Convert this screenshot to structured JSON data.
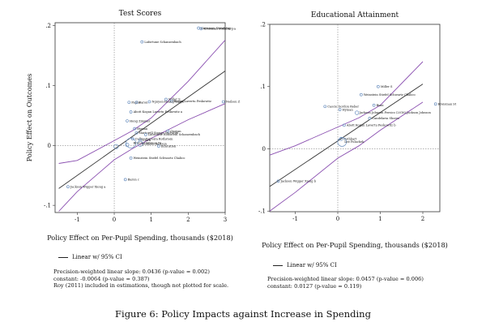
{
  "caption": "Figure 6: Policy Impacts against Increase in Spending",
  "panels": [
    {
      "legend_label": "Linear w/ 95% CI",
      "notes": [
        "Precision-weighted linear slope: 0.0436 (p-value = 0.002)",
        " constant: -0.0064 (p-value = 0.387)",
        "Roy (2011) included in estimations, though not plotted for scale."
      ]
    },
    {
      "legend_label": "Linear w/ 95% CI",
      "notes": [
        "Precision-weighted linear slope: 0.0457 (p-value = 0.006)",
        " constant: 0.0127 (p-value = 0.119)"
      ]
    }
  ],
  "chart_data": [
    {
      "type": "scatter",
      "title": "Test Scores",
      "xlabel": "Policy Effect on Per-Pupil Spending, thousands ($2018)",
      "ylabel": "Policy Effect on Outcomes",
      "xlim": [
        -1.6,
        3.0
      ],
      "ylim": [
        -0.112,
        0.205
      ],
      "xticks": [
        "-1",
        "0",
        "1",
        "2",
        "3"
      ],
      "xtick_values": [
        -1,
        0,
        1,
        2,
        3
      ],
      "yticks": [
        "-.1",
        "0",
        ".1",
        ".2"
      ],
      "ytick_values": [
        -0.1,
        0,
        0.1,
        0.2
      ],
      "fit": {
        "slope": 0.0436,
        "intercept": -0.0064,
        "x": [
          -1.5,
          3.0
        ]
      },
      "ci_upper": {
        "x": [
          -1.5,
          -1.0,
          0.0,
          0.5,
          1.0,
          2.0,
          3.0
        ],
        "y": [
          -0.03,
          -0.025,
          0.008,
          0.025,
          0.046,
          0.107,
          0.176
        ]
      },
      "ci_lower": {
        "x": [
          -1.5,
          -1.0,
          0.0,
          0.5,
          1.0,
          2.0,
          3.0
        ],
        "y": [
          -0.11,
          -0.077,
          -0.024,
          -0.005,
          0.012,
          0.043,
          0.07
        ]
      },
      "colors": {
        "points": "#6a8fbf",
        "fit": "#333333",
        "ci": "#8a4fb0",
        "frame": "#333333"
      },
      "points": [
        {
          "x": 2.28,
          "y": 0.196,
          "w": 1,
          "label": "Kreisman Steinberg ..."
        },
        {
          "x": 2.35,
          "y": 0.195,
          "w": 1,
          "label": "Kreisman Steinberg a"
        },
        {
          "x": 0.75,
          "y": 0.173,
          "w": 1,
          "label": "Lafortune Schanzenbach"
        },
        {
          "x": 2.95,
          "y": 0.073,
          "w": 1,
          "label": "Neilson Z"
        },
        {
          "x": 1.4,
          "y": 0.077,
          "w": 1,
          "label": "Miller S"
        },
        {
          "x": 1.55,
          "y": 0.074,
          "w": 1,
          "label": "Kogan Lavertu Peskowitz"
        },
        {
          "x": 0.95,
          "y": 0.073,
          "w": 1,
          "label": "Nguyen-Hoang Yinger"
        },
        {
          "x": 0.4,
          "y": 0.072,
          "w": 1,
          "label": "Papke"
        },
        {
          "x": 0.6,
          "y": 0.072,
          "w": 1,
          "label": "Baron"
        },
        {
          "x": 0.45,
          "y": 0.056,
          "w": 1,
          "label": "Abott Kogan Lavertu Peskowitz a"
        },
        {
          "x": 0.35,
          "y": 0.041,
          "w": 1,
          "label": "Hong Zimmer"
        },
        {
          "x": 0.55,
          "y": 0.028,
          "w": 1,
          "label": "Hyman"
        },
        {
          "x": 1.45,
          "y": 0.024,
          "w": 1,
          "label": "Guryan"
        },
        {
          "x": 0.6,
          "y": 0.021,
          "w": 1,
          "label": "Martorell Stange McFarlin"
        },
        {
          "x": 0.85,
          "y": 0.018,
          "w": 1,
          "label": "Lafortune Rothstein Schanzenbach"
        },
        {
          "x": 0.5,
          "y": 0.011,
          "w": 1,
          "label": "Cellini Ferreira Rothstein"
        },
        {
          "x": 0.7,
          "y": 0.009,
          "w": 1,
          "label": "Clark"
        },
        {
          "x": 0.45,
          "y": 0.004,
          "w": 4,
          "label": "Brunner Hyman Ju"
        },
        {
          "x": 0.7,
          "y": 0.003,
          "w": 2.2,
          "label": "Johnson Jackson"
        },
        {
          "x": 1.2,
          "y": -0.001,
          "w": 1,
          "label": "Education"
        },
        {
          "x": 0.05,
          "y": -0.002,
          "w": 1.8,
          "label": ""
        },
        {
          "x": 0.35,
          "y": 0.001,
          "w": 1.4,
          "label": ""
        },
        {
          "x": 0.45,
          "y": -0.021,
          "w": 1,
          "label": "Weinstein Stiefel Schwartz Chalico"
        },
        {
          "x": 0.3,
          "y": -0.057,
          "w": 1,
          "label": "Baron c"
        },
        {
          "x": -1.25,
          "y": -0.069,
          "w": 1,
          "label": "Jackson Wigger Xiong a"
        }
      ]
    },
    {
      "type": "scatter",
      "title": "Educational Attainment",
      "xlabel": "Policy Effect on Per-Pupil Spending, thousands ($2018)",
      "ylabel": "",
      "xlim": [
        -1.6,
        2.4
      ],
      "ylim": [
        -0.101,
        0.2
      ],
      "xticks": [
        "-1",
        "0",
        "1",
        "2"
      ],
      "xtick_values": [
        -1,
        0,
        1,
        2
      ],
      "yticks": [
        "-.1",
        "0",
        ".1",
        ".2"
      ],
      "ytick_values": [
        -0.1,
        0,
        0.1,
        0.2
      ],
      "fit": {
        "slope": 0.0457,
        "intercept": 0.0127,
        "x": [
          -1.6,
          2.0
        ]
      },
      "ci_upper": {
        "x": [
          -1.6,
          -1.0,
          0.0,
          0.5,
          1.0,
          2.0
        ],
        "y": [
          -0.01,
          0.005,
          0.035,
          0.05,
          0.07,
          0.14
        ]
      },
      "ci_lower": {
        "x": [
          -1.6,
          -1.0,
          0.0,
          0.5,
          1.0,
          2.0
        ],
        "y": [
          -0.1,
          -0.07,
          -0.015,
          0.005,
          0.03,
          0.075
        ]
      },
      "colors": {
        "points": "#6a8fbf",
        "fit": "#333333",
        "ci": "#8a4fb0",
        "frame": "#333333"
      },
      "points": [
        {
          "x": 0.95,
          "y": 0.1,
          "w": 1,
          "label": "Miller S"
        },
        {
          "x": 2.3,
          "y": 0.072,
          "w": 1,
          "label": "Kreisman St"
        },
        {
          "x": 0.55,
          "y": 0.087,
          "w": 1,
          "label": "Weinstein Stiefel Schwartz Chalico"
        },
        {
          "x": 0.85,
          "y": 0.07,
          "w": 1,
          "label": "Biasi"
        },
        {
          "x": -0.3,
          "y": 0.068,
          "w": 1,
          "label": "Cascio Gordon Reber"
        },
        {
          "x": 0.05,
          "y": 0.063,
          "w": 1,
          "label": "Hyman"
        },
        {
          "x": 0.45,
          "y": 0.058,
          "w": 1.5,
          "label": "Jackson Johnson Persico (2016) Jackson Johnson"
        },
        {
          "x": 0.75,
          "y": 0.049,
          "w": 1,
          "label": "Candelaria Shores"
        },
        {
          "x": 0.15,
          "y": 0.038,
          "w": 1,
          "label": "Abott Kogan Lavertu Peskowitz b"
        },
        {
          "x": 0.08,
          "y": 0.016,
          "w": 1.3,
          "label": "Rothbart"
        },
        {
          "x": 0.1,
          "y": 0.011,
          "w": 3.6,
          "label": "Lee Polachek"
        },
        {
          "x": -1.4,
          "y": -0.052,
          "w": 1,
          "label": "Jackson Wigger Xiong b"
        }
      ]
    }
  ]
}
